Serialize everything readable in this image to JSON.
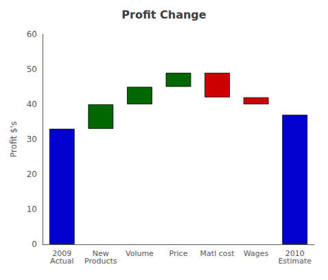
{
  "chart_data": {
    "type": "waterfall",
    "title": "Profit Change",
    "ylabel": "Profit $'s",
    "categories": [
      "2009\nActual",
      "New\nProducts",
      "Volume",
      "Price",
      "Matl cost",
      "Wages",
      "2010\nEstimate"
    ],
    "bases": [
      0,
      33,
      40,
      45,
      42,
      40,
      0
    ],
    "values": [
      33,
      7,
      5,
      4,
      7,
      2,
      37
    ],
    "colors": [
      "#0000cc",
      "#006600",
      "#006600",
      "#006600",
      "#cc0000",
      "#cc0000",
      "#0000cc"
    ],
    "ylim": [
      0,
      60
    ],
    "yticks": [
      0,
      10,
      20,
      30,
      40,
      50,
      60
    ],
    "grid": false
  }
}
